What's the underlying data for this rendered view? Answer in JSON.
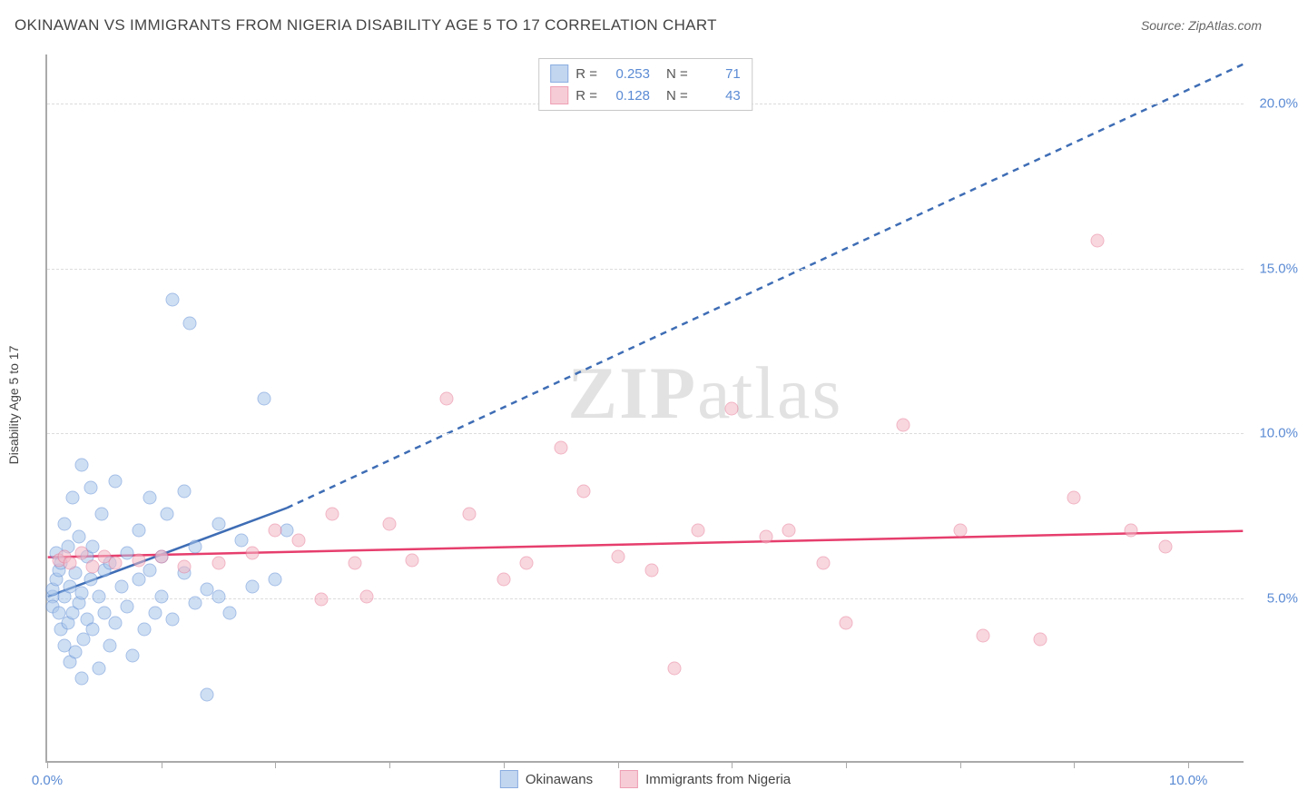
{
  "header": {
    "title": "OKINAWAN VS IMMIGRANTS FROM NIGERIA DISABILITY AGE 5 TO 17 CORRELATION CHART",
    "source": "Source: ZipAtlas.com"
  },
  "y_axis_label": "Disability Age 5 to 17",
  "watermark": {
    "bold": "ZIP",
    "light": "atlas"
  },
  "chart": {
    "type": "scatter",
    "xlim": [
      0,
      10.5
    ],
    "ylim": [
      0,
      21.5
    ],
    "x_ticks": [
      0,
      1,
      2,
      3,
      4,
      5,
      6,
      7,
      8,
      9,
      10
    ],
    "x_tick_labels": {
      "0": "0.0%",
      "10": "10.0%"
    },
    "y_gridlines": [
      5,
      10,
      15,
      20
    ],
    "y_tick_labels": {
      "5": "5.0%",
      "10": "10.0%",
      "15": "15.0%",
      "20": "20.0%"
    },
    "background_color": "#ffffff",
    "grid_color": "#dcdcdc",
    "axis_color": "#aaaaaa"
  },
  "series": [
    {
      "name": "Okinawans",
      "fill_color": "#a9c6eb",
      "fill_opacity": 0.55,
      "stroke_color": "#5b8bd4",
      "marker_radius": 7.5,
      "trend": {
        "solid": [
          [
            0,
            5
          ],
          [
            2.1,
            7.7
          ]
        ],
        "dashed": [
          [
            2.1,
            7.7
          ],
          [
            10.5,
            21.2
          ]
        ],
        "color": "#3e6db5",
        "width": 2.5
      },
      "stats": {
        "R": "0.253",
        "N": "71"
      },
      "points": [
        [
          0.05,
          5.0
        ],
        [
          0.05,
          5.2
        ],
        [
          0.05,
          4.7
        ],
        [
          0.08,
          5.5
        ],
        [
          0.08,
          6.3
        ],
        [
          0.1,
          4.5
        ],
        [
          0.1,
          5.8
        ],
        [
          0.12,
          6.0
        ],
        [
          0.12,
          4.0
        ],
        [
          0.15,
          5.0
        ],
        [
          0.15,
          3.5
        ],
        [
          0.15,
          7.2
        ],
        [
          0.18,
          6.5
        ],
        [
          0.18,
          4.2
        ],
        [
          0.2,
          5.3
        ],
        [
          0.2,
          3.0
        ],
        [
          0.22,
          8.0
        ],
        [
          0.22,
          4.5
        ],
        [
          0.25,
          5.7
        ],
        [
          0.25,
          3.3
        ],
        [
          0.28,
          6.8
        ],
        [
          0.28,
          4.8
        ],
        [
          0.3,
          5.1
        ],
        [
          0.3,
          9.0
        ],
        [
          0.32,
          3.7
        ],
        [
          0.35,
          6.2
        ],
        [
          0.35,
          4.3
        ],
        [
          0.38,
          5.5
        ],
        [
          0.38,
          8.3
        ],
        [
          0.4,
          4.0
        ],
        [
          0.4,
          6.5
        ],
        [
          0.45,
          5.0
        ],
        [
          0.45,
          2.8
        ],
        [
          0.48,
          7.5
        ],
        [
          0.5,
          4.5
        ],
        [
          0.5,
          5.8
        ],
        [
          0.55,
          3.5
        ],
        [
          0.55,
          6.0
        ],
        [
          0.6,
          4.2
        ],
        [
          0.6,
          8.5
        ],
        [
          0.65,
          5.3
        ],
        [
          0.7,
          4.7
        ],
        [
          0.7,
          6.3
        ],
        [
          0.75,
          3.2
        ],
        [
          0.8,
          5.5
        ],
        [
          0.8,
          7.0
        ],
        [
          0.85,
          4.0
        ],
        [
          0.9,
          5.8
        ],
        [
          0.9,
          8.0
        ],
        [
          0.95,
          4.5
        ],
        [
          1.0,
          6.2
        ],
        [
          1.0,
          5.0
        ],
        [
          1.05,
          7.5
        ],
        [
          1.1,
          4.3
        ],
        [
          1.1,
          14.0
        ],
        [
          1.2,
          5.7
        ],
        [
          1.2,
          8.2
        ],
        [
          1.25,
          13.3
        ],
        [
          1.3,
          4.8
        ],
        [
          1.3,
          6.5
        ],
        [
          1.4,
          5.2
        ],
        [
          1.4,
          2.0
        ],
        [
          1.5,
          5.0
        ],
        [
          1.5,
          7.2
        ],
        [
          1.6,
          4.5
        ],
        [
          1.7,
          6.7
        ],
        [
          1.8,
          5.3
        ],
        [
          1.9,
          11.0
        ],
        [
          2.0,
          5.5
        ],
        [
          2.1,
          7.0
        ],
        [
          0.3,
          2.5
        ]
      ]
    },
    {
      "name": "Immigrants from Nigeria",
      "fill_color": "#f3b8c6",
      "fill_opacity": 0.55,
      "stroke_color": "#e77795",
      "marker_radius": 7.5,
      "trend": {
        "solid": [
          [
            0,
            6.2
          ],
          [
            10.5,
            7.0
          ]
        ],
        "dashed": null,
        "color": "#e63e6d",
        "width": 2.5
      },
      "stats": {
        "R": "0.128",
        "N": "43"
      },
      "points": [
        [
          0.1,
          6.1
        ],
        [
          0.15,
          6.2
        ],
        [
          0.2,
          6.0
        ],
        [
          0.3,
          6.3
        ],
        [
          0.4,
          5.9
        ],
        [
          0.5,
          6.2
        ],
        [
          0.6,
          6.0
        ],
        [
          0.8,
          6.1
        ],
        [
          1.0,
          6.2
        ],
        [
          1.2,
          5.9
        ],
        [
          1.5,
          6.0
        ],
        [
          1.8,
          6.3
        ],
        [
          2.0,
          7.0
        ],
        [
          2.2,
          6.7
        ],
        [
          2.4,
          4.9
        ],
        [
          2.5,
          7.5
        ],
        [
          2.7,
          6.0
        ],
        [
          2.8,
          5.0
        ],
        [
          3.0,
          7.2
        ],
        [
          3.2,
          6.1
        ],
        [
          3.5,
          11.0
        ],
        [
          3.7,
          7.5
        ],
        [
          4.0,
          5.5
        ],
        [
          4.2,
          6.0
        ],
        [
          4.5,
          9.5
        ],
        [
          4.7,
          8.2
        ],
        [
          5.0,
          6.2
        ],
        [
          5.3,
          5.8
        ],
        [
          5.5,
          2.8
        ],
        [
          5.7,
          7.0
        ],
        [
          6.0,
          10.7
        ],
        [
          6.3,
          6.8
        ],
        [
          6.5,
          7.0
        ],
        [
          6.8,
          6.0
        ],
        [
          7.0,
          4.2
        ],
        [
          7.5,
          10.2
        ],
        [
          8.0,
          7.0
        ],
        [
          8.2,
          3.8
        ],
        [
          8.7,
          3.7
        ],
        [
          9.0,
          8.0
        ],
        [
          9.2,
          15.8
        ],
        [
          9.5,
          7.0
        ],
        [
          9.8,
          6.5
        ]
      ]
    }
  ],
  "stats_box": {
    "rows": [
      {
        "series": 0,
        "R_label": "R =",
        "N_label": "N ="
      },
      {
        "series": 1,
        "R_label": "R =",
        "N_label": "N ="
      }
    ]
  },
  "legend_bottom": [
    {
      "series": 0
    },
    {
      "series": 1
    }
  ]
}
